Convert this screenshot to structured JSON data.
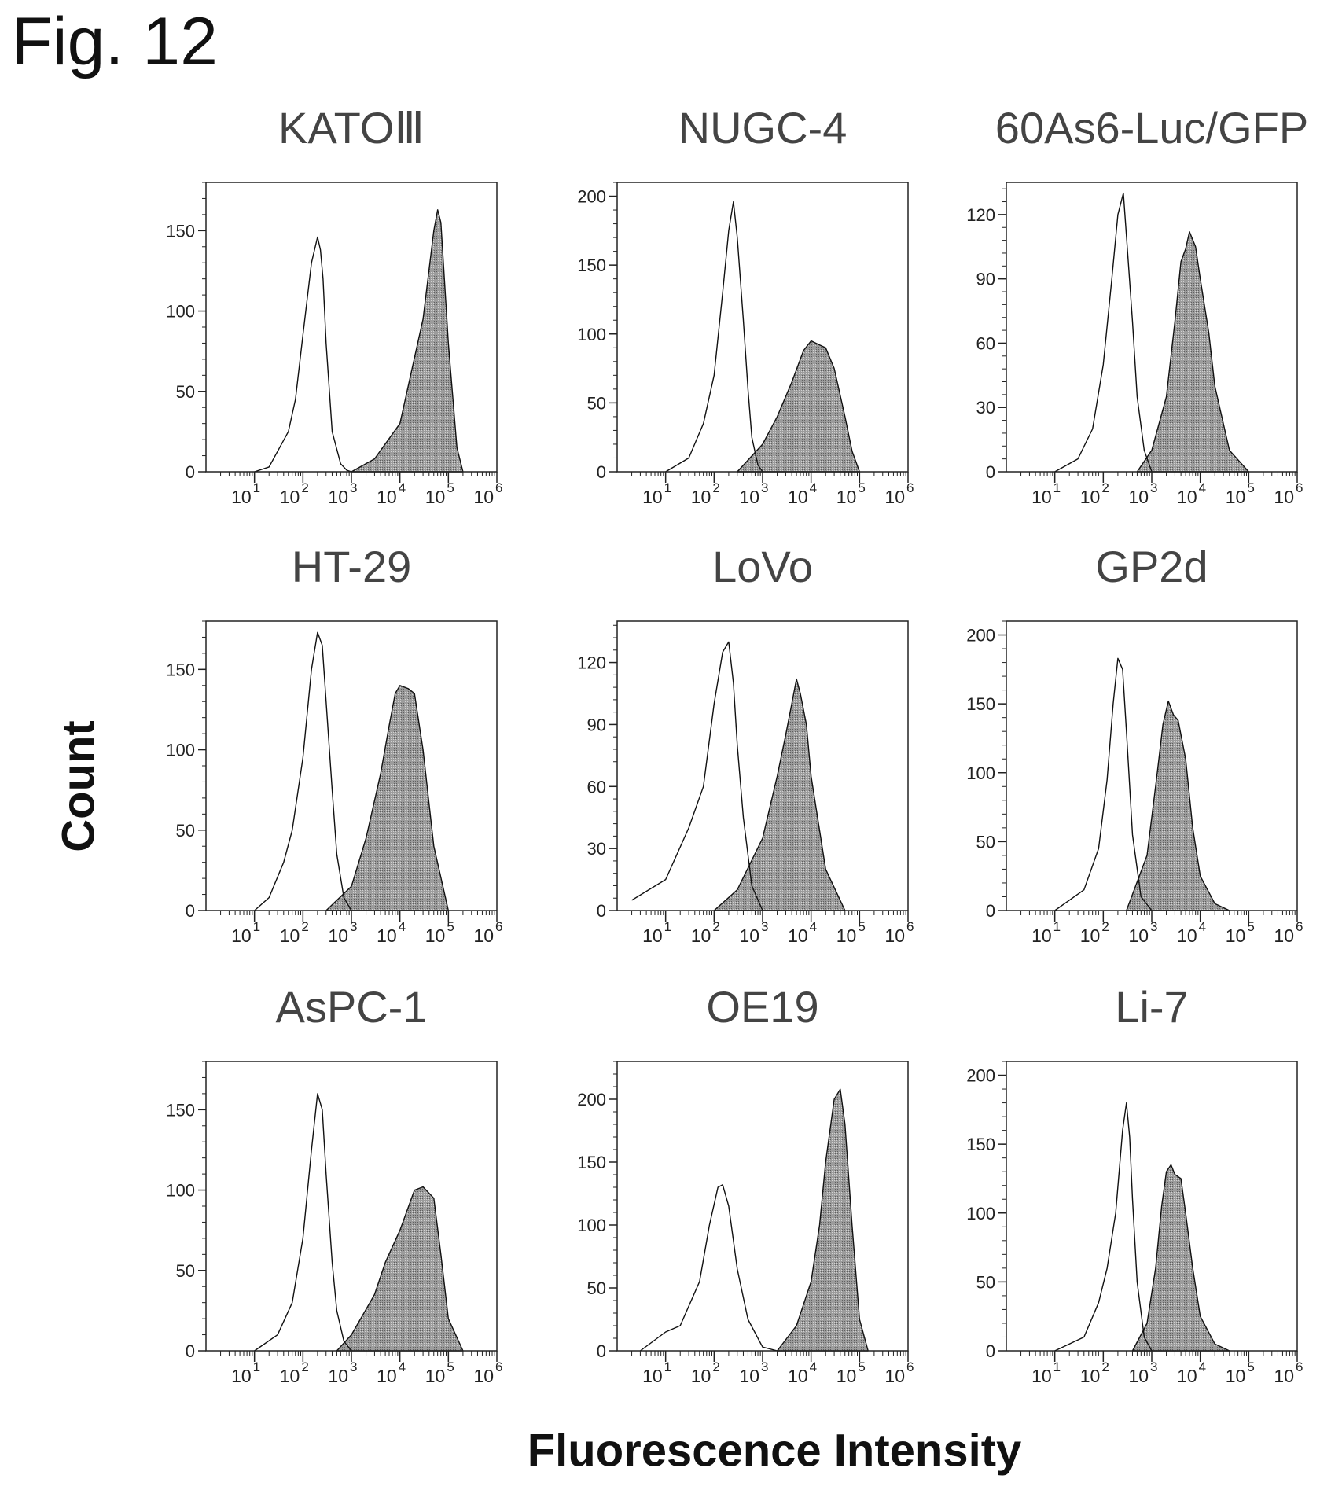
{
  "figure": {
    "title": "Fig. 12",
    "ylabel": "Count",
    "xlabel": "Fluorescence Intensity"
  },
  "chart_data": [
    {
      "type": "area",
      "title": "KATOⅢ",
      "x_scale": "log",
      "xlim": [
        1,
        1000000
      ],
      "ylim": [
        0,
        180
      ],
      "yticks": [
        0,
        50,
        100,
        150
      ],
      "xticks": [
        10,
        100,
        1000,
        10000,
        100000,
        1000000
      ],
      "xtick_labels": [
        "1",
        "2",
        "3",
        "4",
        "5",
        "6"
      ],
      "series": [
        {
          "style": "outline",
          "x": [
            10,
            20,
            50,
            70,
            100,
            150,
            200,
            230,
            260,
            300,
            400,
            600,
            800,
            1000
          ],
          "y": [
            0,
            3,
            25,
            45,
            85,
            130,
            146,
            138,
            120,
            80,
            25,
            5,
            1,
            0
          ]
        },
        {
          "style": "filled",
          "x": [
            1000,
            3000,
            10000,
            30000,
            50000,
            60000,
            70000,
            100000,
            150000,
            200000
          ],
          "y": [
            0,
            8,
            30,
            95,
            150,
            163,
            155,
            80,
            15,
            0
          ]
        }
      ]
    },
    {
      "type": "area",
      "title": "NUGC-4",
      "x_scale": "log",
      "xlim": [
        1,
        1000000
      ],
      "ylim": [
        0,
        210
      ],
      "yticks": [
        0,
        50,
        100,
        150,
        200
      ],
      "xticks": [
        10,
        100,
        1000,
        10000,
        100000,
        1000000
      ],
      "xtick_labels": [
        "1",
        "2",
        "3",
        "4",
        "5",
        "6"
      ],
      "series": [
        {
          "style": "outline",
          "x": [
            10,
            30,
            60,
            100,
            150,
            200,
            250,
            300,
            400,
            500,
            600,
            800,
            1000
          ],
          "y": [
            0,
            10,
            35,
            70,
            130,
            175,
            196,
            170,
            110,
            60,
            25,
            5,
            0
          ]
        },
        {
          "style": "filled",
          "x": [
            300,
            1000,
            2000,
            4000,
            7000,
            10000,
            15000,
            20000,
            30000,
            50000,
            70000,
            100000
          ],
          "y": [
            0,
            20,
            40,
            65,
            88,
            95,
            92,
            90,
            75,
            40,
            15,
            0
          ]
        }
      ]
    },
    {
      "type": "area",
      "title": "60As6-Luc/GFP",
      "x_scale": "log",
      "xlim": [
        1,
        1000000
      ],
      "ylim": [
        0,
        135
      ],
      "yticks": [
        0,
        30,
        60,
        90,
        120
      ],
      "xticks": [
        10,
        100,
        1000,
        10000,
        100000,
        1000000
      ],
      "xtick_labels": [
        "1",
        "2",
        "3",
        "4",
        "5",
        "6"
      ],
      "series": [
        {
          "style": "outline",
          "x": [
            10,
            30,
            60,
            100,
            150,
            200,
            260,
            300,
            400,
            500,
            700,
            1000
          ],
          "y": [
            0,
            6,
            20,
            50,
            90,
            120,
            130,
            110,
            70,
            35,
            10,
            0
          ]
        },
        {
          "style": "filled",
          "x": [
            500,
            1000,
            2000,
            3000,
            4000,
            5000,
            6000,
            8000,
            10000,
            15000,
            20000,
            40000,
            100000
          ],
          "y": [
            0,
            10,
            35,
            70,
            98,
            104,
            112,
            105,
            90,
            65,
            40,
            10,
            0
          ]
        }
      ]
    },
    {
      "type": "area",
      "title": "HT-29",
      "x_scale": "log",
      "xlim": [
        1,
        1000000
      ],
      "ylim": [
        0,
        180
      ],
      "yticks": [
        0,
        50,
        100,
        150
      ],
      "xticks": [
        10,
        100,
        1000,
        10000,
        100000,
        1000000
      ],
      "xtick_labels": [
        "1",
        "2",
        "3",
        "4",
        "5",
        "6"
      ],
      "series": [
        {
          "style": "outline",
          "x": [
            10,
            20,
            40,
            60,
            100,
            150,
            200,
            250,
            300,
            400,
            500,
            700,
            1000
          ],
          "y": [
            0,
            8,
            30,
            50,
            95,
            150,
            173,
            165,
            130,
            75,
            35,
            8,
            0
          ]
        },
        {
          "style": "filled",
          "x": [
            300,
            1000,
            2000,
            4000,
            6000,
            8000,
            10000,
            15000,
            20000,
            30000,
            50000,
            100000
          ],
          "y": [
            0,
            15,
            45,
            85,
            115,
            135,
            140,
            138,
            135,
            100,
            40,
            0
          ]
        }
      ]
    },
    {
      "type": "area",
      "title": "LoVo",
      "x_scale": "log",
      "xlim": [
        1,
        1000000
      ],
      "ylim": [
        0,
        140
      ],
      "yticks": [
        0,
        30,
        60,
        90,
        120
      ],
      "xticks": [
        10,
        100,
        1000,
        10000,
        100000,
        1000000
      ],
      "xtick_labels": [
        "1",
        "2",
        "3",
        "4",
        "5",
        "6"
      ],
      "series": [
        {
          "style": "outline",
          "x": [
            2,
            10,
            30,
            60,
            100,
            150,
            200,
            250,
            300,
            400,
            600,
            1000
          ],
          "y": [
            5,
            15,
            40,
            60,
            100,
            125,
            130,
            110,
            80,
            45,
            12,
            0
          ]
        },
        {
          "style": "filled",
          "x": [
            100,
            300,
            1000,
            2000,
            3000,
            4000,
            5000,
            6000,
            8000,
            10000,
            20000,
            50000
          ],
          "y": [
            0,
            10,
            35,
            65,
            85,
            100,
            112,
            105,
            90,
            65,
            20,
            0
          ]
        }
      ]
    },
    {
      "type": "area",
      "title": "GP2d",
      "x_scale": "log",
      "xlim": [
        1,
        1000000
      ],
      "ylim": [
        0,
        210
      ],
      "yticks": [
        0,
        50,
        100,
        150,
        200
      ],
      "xticks": [
        10,
        100,
        1000,
        10000,
        100000,
        1000000
      ],
      "xtick_labels": [
        "1",
        "2",
        "3",
        "4",
        "5",
        "6"
      ],
      "series": [
        {
          "style": "outline",
          "x": [
            10,
            40,
            80,
            120,
            160,
            200,
            250,
            300,
            400,
            600,
            1000
          ],
          "y": [
            0,
            15,
            45,
            95,
            150,
            183,
            175,
            130,
            55,
            10,
            0
          ]
        },
        {
          "style": "filled",
          "x": [
            300,
            800,
            1300,
            1700,
            2200,
            2800,
            3500,
            5000,
            7000,
            10000,
            20000,
            40000
          ],
          "y": [
            0,
            40,
            100,
            135,
            152,
            142,
            138,
            110,
            60,
            25,
            5,
            0
          ]
        }
      ]
    },
    {
      "type": "area",
      "title": "AsPC-1",
      "x_scale": "log",
      "xlim": [
        1,
        1000000
      ],
      "ylim": [
        0,
        180
      ],
      "yticks": [
        0,
        50,
        100,
        150
      ],
      "xticks": [
        10,
        100,
        1000,
        10000,
        100000,
        1000000
      ],
      "xtick_labels": [
        "1",
        "2",
        "3",
        "4",
        "5",
        "6"
      ],
      "series": [
        {
          "style": "outline",
          "x": [
            10,
            30,
            60,
            100,
            150,
            200,
            250,
            300,
            400,
            500,
            700,
            1000
          ],
          "y": [
            0,
            10,
            30,
            70,
            125,
            160,
            150,
            110,
            55,
            25,
            6,
            0
          ]
        },
        {
          "style": "filled",
          "x": [
            500,
            1000,
            3000,
            5000,
            10000,
            20000,
            30000,
            50000,
            70000,
            100000,
            200000
          ],
          "y": [
            0,
            10,
            35,
            55,
            75,
            100,
            102,
            95,
            60,
            20,
            0
          ]
        }
      ]
    },
    {
      "type": "area",
      "title": "OE19",
      "x_scale": "log",
      "xlim": [
        1,
        1000000
      ],
      "ylim": [
        0,
        230
      ],
      "yticks": [
        0,
        50,
        100,
        150,
        200
      ],
      "xticks": [
        10,
        100,
        1000,
        10000,
        100000,
        1000000
      ],
      "xtick_labels": [
        "1",
        "2",
        "3",
        "4",
        "5",
        "6"
      ],
      "series": [
        {
          "style": "outline",
          "x": [
            3,
            10,
            20,
            50,
            80,
            120,
            150,
            200,
            300,
            500,
            1000,
            2000
          ],
          "y": [
            0,
            15,
            20,
            55,
            100,
            130,
            132,
            115,
            65,
            25,
            3,
            0
          ]
        },
        {
          "style": "filled",
          "x": [
            2000,
            5000,
            10000,
            15000,
            20000,
            30000,
            40000,
            50000,
            70000,
            100000,
            150000
          ],
          "y": [
            0,
            20,
            55,
            100,
            150,
            200,
            208,
            180,
            100,
            25,
            0
          ]
        }
      ]
    },
    {
      "type": "area",
      "title": "Li-7",
      "x_scale": "log",
      "xlim": [
        1,
        1000000
      ],
      "ylim": [
        0,
        210
      ],
      "yticks": [
        0,
        50,
        100,
        150,
        200
      ],
      "xticks": [
        10,
        100,
        1000,
        10000,
        100000,
        1000000
      ],
      "xtick_labels": [
        "1",
        "2",
        "3",
        "4",
        "5",
        "6"
      ],
      "series": [
        {
          "style": "outline",
          "x": [
            10,
            40,
            80,
            120,
            180,
            250,
            300,
            350,
            400,
            500,
            700,
            1000
          ],
          "y": [
            0,
            10,
            35,
            60,
            100,
            160,
            180,
            155,
            110,
            50,
            10,
            0
          ]
        },
        {
          "style": "filled",
          "x": [
            400,
            800,
            1200,
            1600,
            2000,
            2500,
            3000,
            4000,
            5000,
            7000,
            10000,
            20000,
            40000
          ],
          "y": [
            0,
            20,
            60,
            105,
            130,
            135,
            128,
            125,
            100,
            60,
            25,
            5,
            0
          ]
        }
      ]
    }
  ]
}
